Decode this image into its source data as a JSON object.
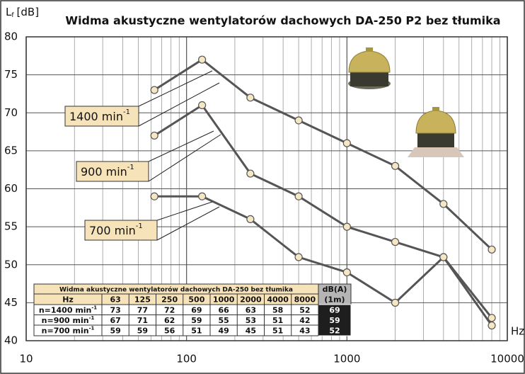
{
  "chart_data": {
    "type": "line",
    "title": "Widma akustyczne wentylatorów dachowych DA-250 P2 bez tłumika",
    "y_label": "L",
    "y_label_sub": "f",
    "y_unit": "[dB]",
    "x_label": "Hz",
    "x": [
      63,
      125,
      250,
      500,
      1000,
      2000,
      4000,
      8000
    ],
    "xlim": [
      10,
      10000
    ],
    "xticks": [
      10,
      100,
      1000,
      10000
    ],
    "ylim": [
      40,
      80
    ],
    "yticks": [
      40,
      45,
      50,
      55,
      60,
      65,
      70,
      75,
      80
    ],
    "log_x": true,
    "grid": true,
    "minor_grid": true,
    "name_sup": "-1",
    "series": [
      {
        "name": "1400 min",
        "color": "#555555",
        "values": [
          73,
          77,
          72,
          69,
          66,
          63,
          58,
          52
        ],
        "dba": 69
      },
      {
        "name": "900 min",
        "color": "#555555",
        "values": [
          67,
          71,
          62,
          59,
          55,
          53,
          51,
          42
        ],
        "dba": 59
      },
      {
        "name": "700 min",
        "color": "#555555",
        "values": [
          59,
          59,
          56,
          51,
          49,
          45,
          51,
          43
        ],
        "dba": 52
      }
    ],
    "table": {
      "title": "Widma akustyczne wentylatorów dachowych DA-250 bez tłumika",
      "freq_header": "Hz",
      "dba_header": "dB(A)",
      "dba_subheader": "(1m)",
      "row_labels": [
        "n=1400 min",
        "n=900 min",
        "n=700 min"
      ]
    }
  }
}
